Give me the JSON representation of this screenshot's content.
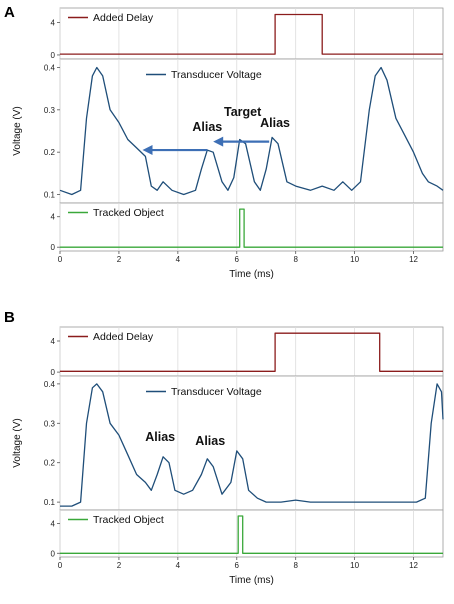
{
  "chart_data": [
    {
      "panel_label": "A",
      "type": "line",
      "xlabel": "Time (ms)",
      "xlim": [
        0,
        13
      ],
      "xticks": [
        0,
        2,
        4,
        6,
        8,
        10,
        12
      ],
      "grid": "vertical",
      "subplots": [
        {
          "legend": "Added Delay",
          "legend_position": "top-left",
          "color": "#8b1c1c",
          "ylabel": "",
          "ylim": [
            -0.5,
            5.8
          ],
          "yticks": [
            0,
            4
          ],
          "x": [
            0,
            7.3,
            7.3,
            8.9,
            8.9,
            13
          ],
          "values": [
            0.1,
            0.1,
            5.0,
            5.0,
            0.1,
            0.1
          ]
        },
        {
          "legend": "Transducer Voltage",
          "legend_position": "top-center",
          "color": "#1f4e79",
          "ylabel": "Voltage (V)",
          "ylim": [
            0.08,
            0.42
          ],
          "yticks": [
            0.1,
            0.2,
            0.3,
            0.4
          ],
          "yticklabels": [
            "0.1",
            "0.2",
            "0.3",
            "0.4"
          ],
          "x": [
            0,
            0.4,
            0.7,
            0.9,
            1.1,
            1.25,
            1.45,
            1.7,
            2.0,
            2.3,
            2.6,
            2.9,
            3.1,
            3.3,
            3.5,
            3.8,
            4.2,
            4.6,
            4.8,
            5.0,
            5.2,
            5.5,
            5.7,
            5.9,
            6.1,
            6.3,
            6.6,
            6.8,
            7.0,
            7.2,
            7.4,
            7.7,
            8.0,
            8.5,
            8.9,
            9.3,
            9.6,
            9.9,
            10.2,
            10.5,
            10.7,
            10.9,
            11.1,
            11.4,
            11.7,
            12.0,
            12.3,
            12.5,
            12.8,
            13.0
          ],
          "values": [
            0.11,
            0.1,
            0.11,
            0.28,
            0.38,
            0.4,
            0.38,
            0.3,
            0.27,
            0.23,
            0.21,
            0.19,
            0.12,
            0.11,
            0.13,
            0.11,
            0.1,
            0.11,
            0.16,
            0.205,
            0.2,
            0.13,
            0.11,
            0.14,
            0.23,
            0.22,
            0.13,
            0.11,
            0.16,
            0.235,
            0.22,
            0.13,
            0.12,
            0.11,
            0.12,
            0.11,
            0.13,
            0.11,
            0.13,
            0.3,
            0.38,
            0.4,
            0.37,
            0.28,
            0.24,
            0.2,
            0.15,
            0.13,
            0.12,
            0.11
          ]
        },
        {
          "legend": "Tracked Object",
          "legend_position": "top-left",
          "color": "#3aa83a",
          "ylabel": "",
          "ylim": [
            -0.5,
            5.8
          ],
          "yticks": [
            0,
            4
          ],
          "x": [
            0,
            6.1,
            6.1,
            6.25,
            6.25,
            13
          ],
          "values": [
            0,
            0,
            5,
            5,
            0,
            0
          ]
        }
      ],
      "annotations": [
        {
          "text": "Alias",
          "x": 5.0,
          "y": 0.25
        },
        {
          "text": "Target",
          "x": 6.2,
          "y": 0.285
        },
        {
          "text": "Alias",
          "x": 7.3,
          "y": 0.26
        }
      ],
      "arrows": [
        {
          "from": [
            7.1,
            0.225
          ],
          "to": [
            5.2,
            0.225
          ]
        },
        {
          "from": [
            5.0,
            0.205
          ],
          "to": [
            2.8,
            0.205
          ]
        }
      ]
    },
    {
      "panel_label": "B",
      "type": "line",
      "xlabel": "Time (ms)",
      "xlim": [
        0,
        13
      ],
      "xticks": [
        0,
        2,
        4,
        6,
        8,
        10,
        12
      ],
      "grid": "vertical",
      "subplots": [
        {
          "legend": "Added Delay",
          "legend_position": "top-left",
          "color": "#8b1c1c",
          "ylabel": "",
          "ylim": [
            -0.5,
            5.8
          ],
          "yticks": [
            0,
            4
          ],
          "x": [
            0,
            7.3,
            7.3,
            10.85,
            10.85,
            13
          ],
          "values": [
            0.1,
            0.1,
            5.0,
            5.0,
            0.1,
            0.1
          ]
        },
        {
          "legend": "Transducer Voltage",
          "legend_position": "top-center",
          "color": "#1f4e79",
          "ylabel": "Voltage (V)",
          "ylim": [
            0.08,
            0.42
          ],
          "yticks": [
            0.1,
            0.2,
            0.3,
            0.4
          ],
          "yticklabels": [
            "0.1",
            "0.2",
            "0.3",
            "0.4"
          ],
          "x": [
            0,
            0.4,
            0.7,
            0.9,
            1.1,
            1.25,
            1.45,
            1.7,
            2.0,
            2.3,
            2.6,
            2.9,
            3.1,
            3.3,
            3.5,
            3.7,
            3.9,
            4.2,
            4.5,
            4.8,
            5.0,
            5.2,
            5.5,
            5.8,
            6.0,
            6.2,
            6.4,
            6.7,
            7.0,
            7.5,
            8.0,
            8.5,
            9.0,
            9.5,
            10.0,
            10.5,
            11.0,
            11.5,
            11.8,
            12.1,
            12.4,
            12.6,
            12.8,
            12.95,
            13.0
          ],
          "values": [
            0.09,
            0.09,
            0.1,
            0.3,
            0.39,
            0.4,
            0.38,
            0.3,
            0.27,
            0.22,
            0.17,
            0.15,
            0.13,
            0.17,
            0.215,
            0.2,
            0.13,
            0.12,
            0.13,
            0.17,
            0.21,
            0.19,
            0.12,
            0.15,
            0.23,
            0.21,
            0.13,
            0.11,
            0.1,
            0.1,
            0.105,
            0.1,
            0.1,
            0.1,
            0.1,
            0.1,
            0.1,
            0.1,
            0.1,
            0.1,
            0.11,
            0.3,
            0.4,
            0.38,
            0.31
          ]
        },
        {
          "legend": "Tracked Object",
          "legend_position": "top-left",
          "color": "#3aa83a",
          "ylabel": "",
          "ylim": [
            -0.5,
            5.8
          ],
          "yticks": [
            0,
            4
          ],
          "x": [
            0,
            6.05,
            6.05,
            6.2,
            6.2,
            13
          ],
          "values": [
            0,
            0,
            5,
            5,
            0,
            0
          ]
        }
      ],
      "annotations": [
        {
          "text": "Alias",
          "x": 3.4,
          "y": 0.255
        },
        {
          "text": "Alias",
          "x": 5.1,
          "y": 0.245
        }
      ],
      "arrows": []
    }
  ]
}
